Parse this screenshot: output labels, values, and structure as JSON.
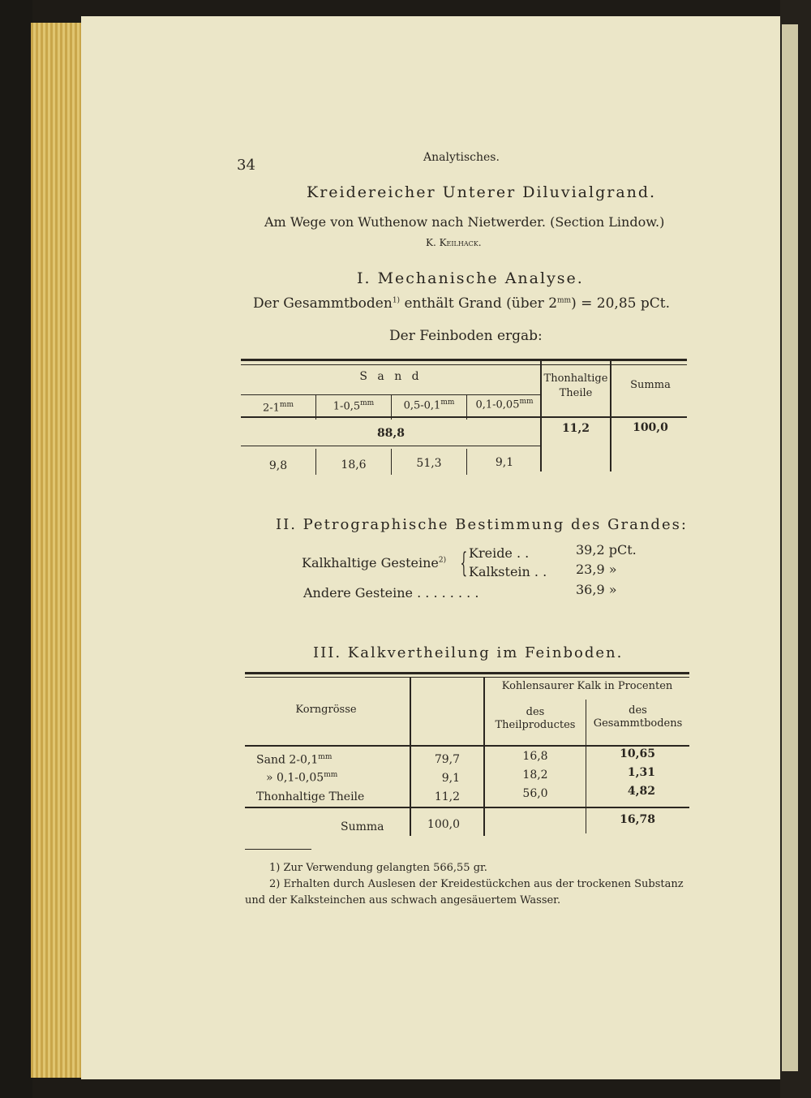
{
  "page_number": "34",
  "running_head": "Analytisches.",
  "title": "Kreidereicher Unterer Diluvialgrand.",
  "location": "Am Wege von Wuthenow nach Nietwerder. (Section Lindow.)",
  "author": "K. Keilhack.",
  "section1": {
    "heading": "I. Mechanische Analyse.",
    "text_prefix": "Der Gesammtboden",
    "text_fn": "1)",
    "text_mid": "enthält Grand (über 2",
    "text_sup": "mm",
    "text_end": ") = 20,85 pCt.",
    "subheading": "Der Feinboden ergab:",
    "table": {
      "sand_label": "S a n d",
      "clay_label": "Thonhaltige Theile",
      "sum_label": "Summa",
      "fractions": [
        "2-1",
        "1-0,5",
        "0,5-0,1",
        "0,1-0,05"
      ],
      "unit": "mm",
      "sand_total": "88,8",
      "clay_value": "11,2",
      "sum_value": "100,0",
      "fraction_values": [
        "9,8",
        "18,6",
        "51,3",
        "9,1"
      ]
    }
  },
  "section2": {
    "heading": "II. Petrographische Bestimmung des Grandes:",
    "group_label": "Kalkhaltige Gesteine",
    "group_fn": "2)",
    "rows": [
      {
        "label": "Kreide . .",
        "value": "39,2 pCt."
      },
      {
        "label": "Kalkstein . .",
        "value": "23,9 »"
      },
      {
        "label": "Andere Gesteine . . . . . . . .",
        "value": "36,9 »"
      }
    ]
  },
  "section3": {
    "heading": "III. Kalkvertheilung im Feinboden.",
    "headers": {
      "korn": "Korngrösse",
      "kalk": "Kohlensaurer Kalk in Procenten",
      "teil": "des Theilproductes",
      "gesamt": "des Gesammtbodens"
    },
    "rows": [
      {
        "label": "Sand 2-0,1",
        "sup": "mm",
        "share": "79,7",
        "teil": "16,8",
        "gesamt": "10,65"
      },
      {
        "label": "» 0,1-0,05",
        "sup": "mm",
        "share": "9,1",
        "teil": "18,2",
        "gesamt": "1,31"
      },
      {
        "label": "Thonhaltige Theile",
        "sup": "",
        "share": "11,2",
        "teil": "56,0",
        "gesamt": "4,82"
      }
    ],
    "sum": {
      "label": "Summa",
      "share": "100,0",
      "gesamt": "16,78"
    }
  },
  "footnotes": [
    "1) Zur Verwendung gelangten 566,55 gr.",
    "2) Erhalten durch Auslesen der Kreidestückchen aus der trockenen Substanz",
    "und der Kalksteinchen aus schwach angesäuertem Wasser."
  ]
}
